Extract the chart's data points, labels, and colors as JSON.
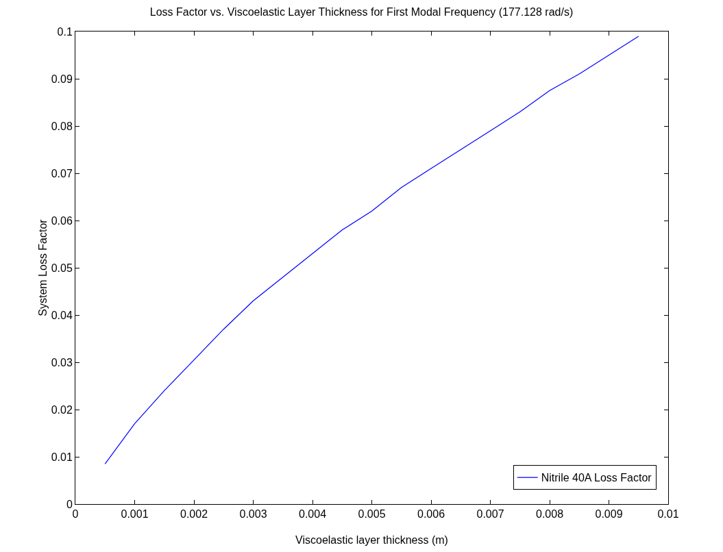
{
  "chart_data": {
    "type": "line",
    "title": "Loss Factor vs. Viscoelastic Layer Thickness for First Modal Frequency (177.128 rad/s)",
    "xlabel": "Viscoelastic layer thickness (m)",
    "ylabel": "System Loss Factor",
    "x": [
      0.0005,
      0.001,
      0.0015,
      0.002,
      0.0025,
      0.003,
      0.0035,
      0.004,
      0.0045,
      0.005,
      0.0055,
      0.006,
      0.0065,
      0.007,
      0.0075,
      0.008,
      0.0085,
      0.009,
      0.0095
    ],
    "series": [
      {
        "name": "Nitrile 40A Loss Factor",
        "color": "#0000ff",
        "values": [
          0.0085,
          0.017,
          0.024,
          0.0305,
          0.037,
          0.043,
          0.048,
          0.053,
          0.058,
          0.062,
          0.067,
          0.071,
          0.075,
          0.079,
          0.083,
          0.0875,
          0.091,
          0.095,
          0.099
        ]
      }
    ],
    "xlim": [
      0,
      0.01
    ],
    "xticks": [
      0,
      0.001,
      0.002,
      0.003,
      0.004,
      0.005,
      0.006,
      0.007,
      0.008,
      0.009,
      0.01
    ],
    "ylim": [
      0,
      0.1
    ],
    "yticks": [
      0,
      0.01,
      0.02,
      0.03,
      0.04,
      0.05,
      0.06,
      0.07,
      0.08,
      0.09,
      0.1
    ],
    "grid": false,
    "legend": "bottom right",
    "marker": "none",
    "line_style": "solid"
  }
}
